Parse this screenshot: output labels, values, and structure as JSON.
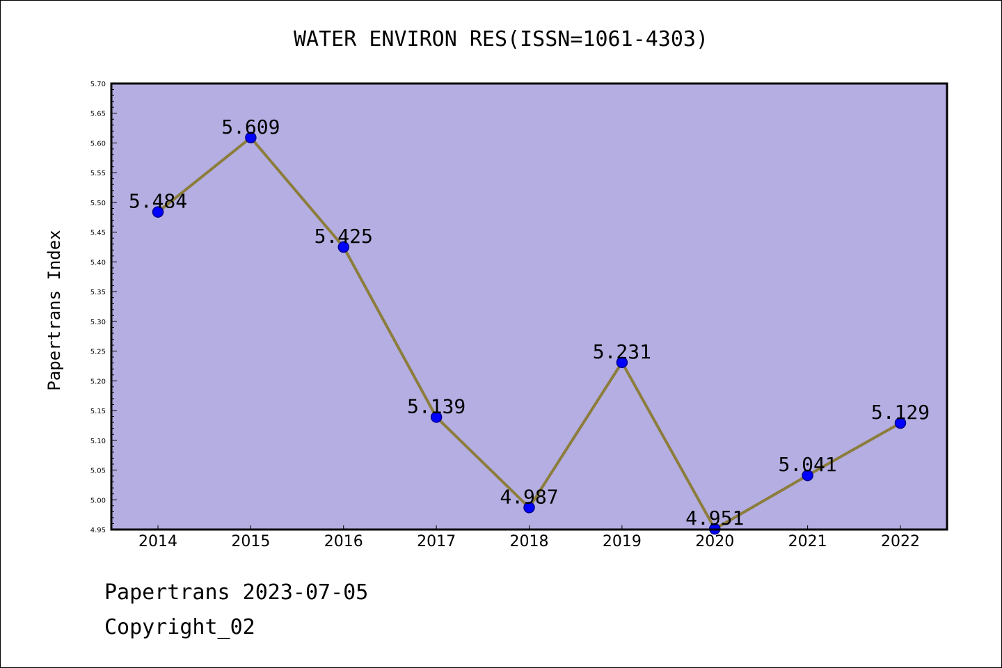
{
  "chart_data": {
    "type": "line",
    "title": "WATER ENVIRON RES(ISSN=1061-4303)",
    "xlabel": "",
    "ylabel": "Papertrans Index",
    "categories": [
      "2014",
      "2015",
      "2016",
      "2017",
      "2018",
      "2019",
      "2020",
      "2021",
      "2022"
    ],
    "series": [
      {
        "values": [
          5.484,
          5.609,
          5.425,
          5.139,
          4.987,
          5.231,
          4.951,
          5.041,
          5.129
        ],
        "labels": [
          "5.484",
          "5.609",
          "5.425",
          "5.139",
          "4.987",
          "5.231",
          "4.951",
          "5.041",
          "5.129"
        ]
      }
    ],
    "ylim": [
      4.95,
      5.7
    ],
    "yticks": [
      "4.95",
      "5.00",
      "5.05",
      "5.10",
      "5.15",
      "5.20",
      "5.25",
      "5.30",
      "5.35",
      "5.40",
      "5.45",
      "5.50",
      "5.55",
      "5.60",
      "5.65",
      "5.70"
    ],
    "grid": false,
    "colors": {
      "plot_background": "#b4aee2",
      "line": "#8c7d3c",
      "marker": "#0000ff",
      "marker_edge": "#00008b"
    }
  },
  "footer": {
    "date_line": "Papertrans 2023-07-05",
    "copyright_line": "Copyright_02"
  }
}
